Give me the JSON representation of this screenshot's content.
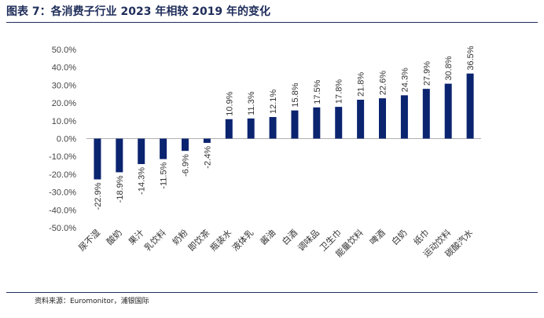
{
  "title": "图表 7：各消费子行业 2023 年相较 2019 年的变化",
  "source": "资料来源：Euromonitor，浦银国际",
  "colors": {
    "bar": "#0b2470",
    "rule": "#1f2d5a",
    "axis": "#b0b0b0"
  },
  "chart_data": {
    "type": "bar",
    "categories": [
      "尿不湿",
      "酸奶",
      "果汁",
      "乳饮料",
      "奶粉",
      "即饮茶",
      "瓶装水",
      "液体乳",
      "酱油",
      "白酒",
      "调味品",
      "卫生巾",
      "能量饮料",
      "啤酒",
      "白奶",
      "纸巾",
      "运动饮料",
      "碳酸汽水"
    ],
    "values": [
      -22.9,
      -18.9,
      -14.3,
      -11.5,
      -6.9,
      -2.4,
      10.9,
      11.3,
      12.1,
      15.8,
      17.5,
      17.8,
      21.8,
      22.6,
      24.3,
      27.9,
      30.8,
      36.5
    ],
    "value_labels": [
      "-22.9%",
      "-18.9%",
      "-14.3%",
      "-11.5%",
      "-6.9%",
      "-2.4%",
      "10.9%",
      "11.3%",
      "12.1%",
      "15.8%",
      "17.5%",
      "17.8%",
      "21.8%",
      "22.6%",
      "24.3%",
      "27.9%",
      "30.8%",
      "36.5%"
    ],
    "yticks": [
      "50.0%",
      "40.0%",
      "30.0%",
      "20.0%",
      "10.0%",
      "0.0%",
      "-10.0%",
      "-20.0%",
      "-30.0%",
      "-40.0%",
      "-50.0%"
    ],
    "ylim": [
      -50,
      50
    ],
    "grid": false,
    "legend": "none"
  }
}
